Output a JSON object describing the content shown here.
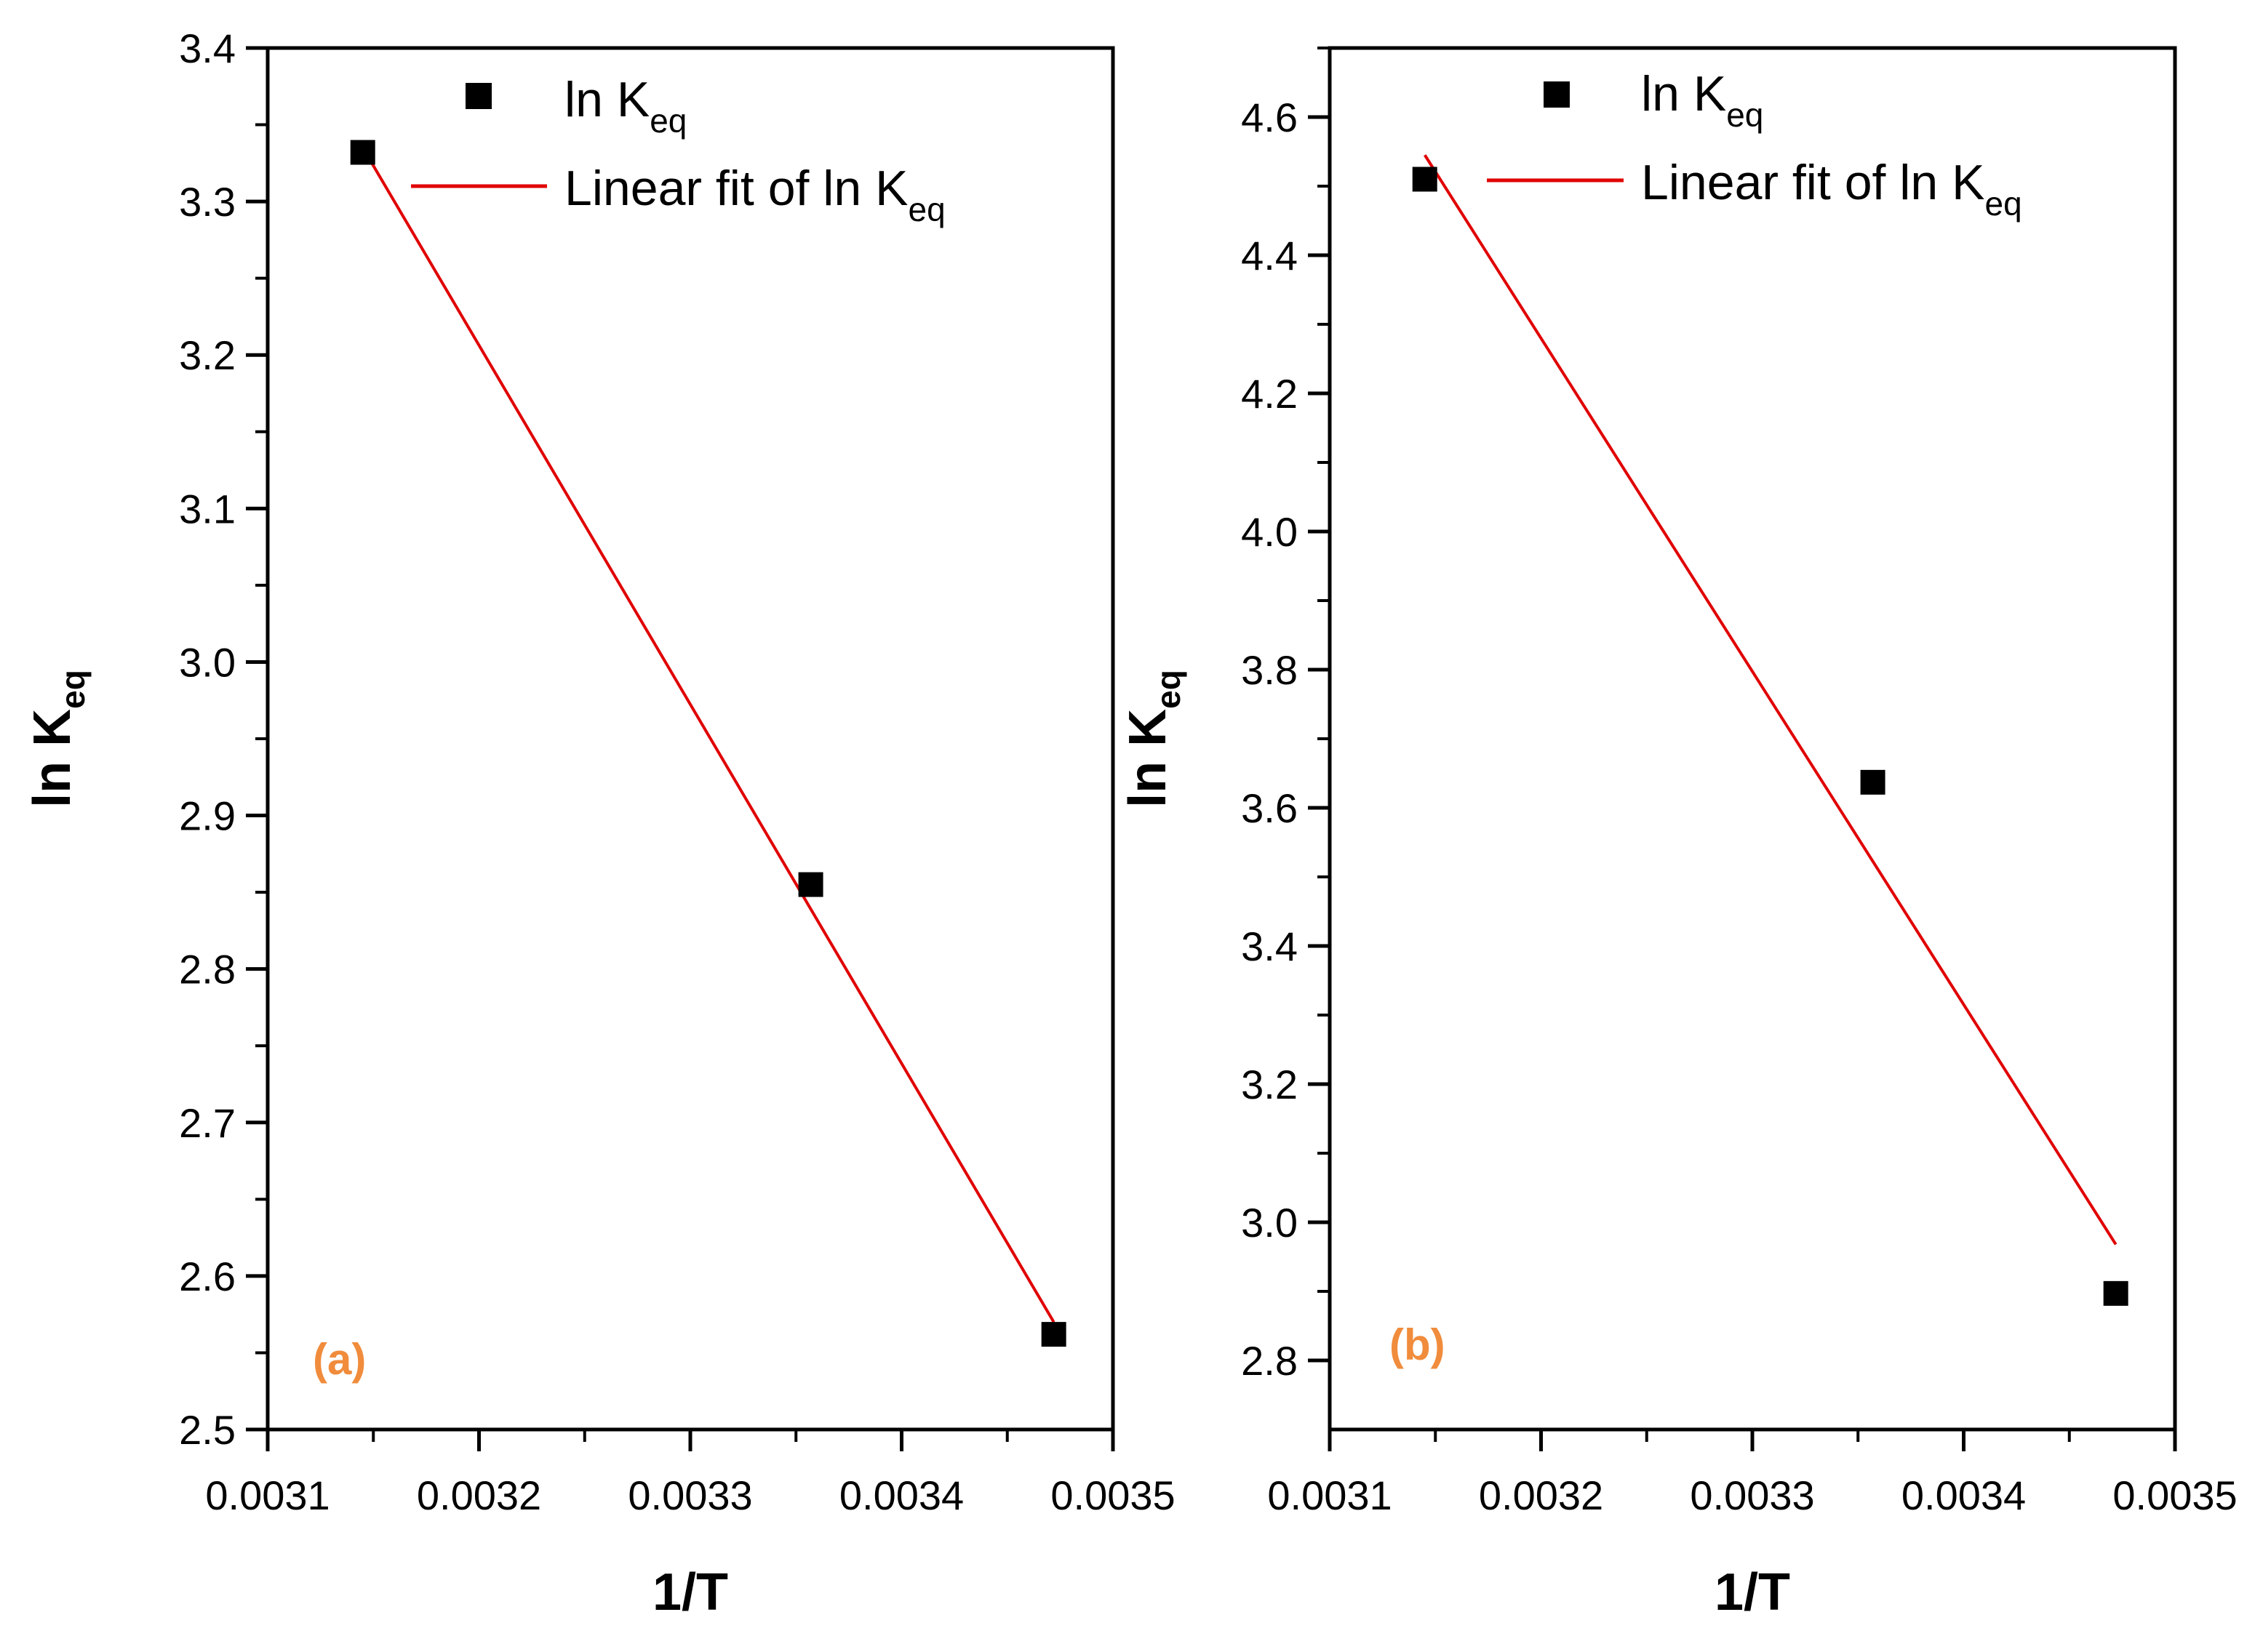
{
  "chart_data": [
    {
      "type": "scatter",
      "panel_label": "(a)",
      "xlabel": "1/T",
      "ylabel": "ln K",
      "ylabel_sub": "eq",
      "xlim": [
        0.0031,
        0.0035
      ],
      "ylim": [
        2.5,
        3.4
      ],
      "xticks": [
        0.0031,
        0.0032,
        0.0033,
        0.0034,
        0.0035
      ],
      "xtick_labels": [
        "0.0031",
        "0.0032",
        "0.0033",
        "0.0034",
        "0.0035"
      ],
      "yticks": [
        2.5,
        2.6,
        2.7,
        2.8,
        2.9,
        3.0,
        3.1,
        3.2,
        3.3,
        3.4
      ],
      "ytick_labels": [
        "2.5",
        "2.6",
        "2.7",
        "2.8",
        "2.9",
        "3.0",
        "3.1",
        "3.2",
        "3.3",
        "3.4"
      ],
      "series": [
        {
          "name": "ln K",
          "name_sub": "eq",
          "kind": "points",
          "x": [
            0.003145,
            0.003357,
            0.003472
          ],
          "y": [
            3.332,
            2.855,
            2.562
          ]
        },
        {
          "name": "Linear fit of ln K",
          "name_sub": "eq",
          "kind": "line",
          "x": [
            0.003145,
            0.003472
          ],
          "y": [
            3.335,
            2.57
          ]
        }
      ],
      "legend_position": "top",
      "grid": false
    },
    {
      "type": "scatter",
      "panel_label": "(b)",
      "xlabel": "1/T",
      "ylabel": "ln K",
      "ylabel_sub": "eq",
      "xlim": [
        0.0031,
        0.0035
      ],
      "ylim": [
        2.7,
        4.7
      ],
      "xticks": [
        0.0031,
        0.0032,
        0.0033,
        0.0034,
        0.0035
      ],
      "xtick_labels": [
        "0.0031",
        "0.0032",
        "0.0033",
        "0.0034",
        "0.0035"
      ],
      "yticks": [
        2.8,
        3.0,
        3.2,
        3.4,
        3.6,
        3.8,
        4.0,
        4.2,
        4.4,
        4.6
      ],
      "ytick_labels": [
        "2.8",
        "3.0",
        "3.2",
        "3.4",
        "3.6",
        "3.8",
        "4.0",
        "4.2",
        "4.4",
        "4.6"
      ],
      "series": [
        {
          "name": "ln K",
          "name_sub": "eq",
          "kind": "points",
          "x": [
            0.003145,
            0.003357,
            0.003472
          ],
          "y": [
            4.51,
            3.637,
            2.897
          ]
        },
        {
          "name": "Linear fit of ln K",
          "name_sub": "eq",
          "kind": "line",
          "x": [
            0.003145,
            0.003472
          ],
          "y": [
            4.545,
            2.968
          ]
        }
      ],
      "legend_position": "top",
      "grid": false
    }
  ],
  "colors": {
    "fit_line": "#e00000",
    "points": "#000000",
    "panel_label": "#f08c3c"
  }
}
